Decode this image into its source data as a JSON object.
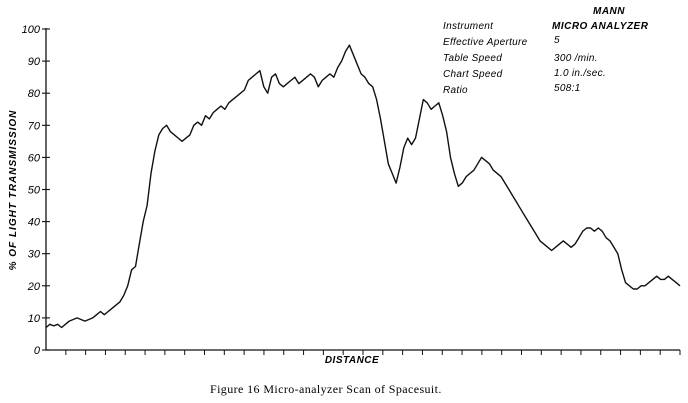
{
  "chart_data": {
    "type": "line",
    "ylabel": "% OF LIGHT TRANSMISSION",
    "xlabel": "DISTANCE",
    "ylim": [
      0,
      100
    ],
    "yticks": [
      "0",
      "10",
      "20",
      "30",
      "40",
      "50",
      "60",
      "70",
      "80",
      "90",
      "100"
    ],
    "grid": false,
    "series": [
      {
        "values": [
          7,
          8,
          7.5,
          8,
          7,
          8,
          9,
          9.5,
          10,
          9.5,
          9,
          9.5,
          10,
          11,
          12,
          11,
          12,
          13,
          14,
          15,
          17,
          20,
          25,
          26,
          33,
          40,
          45,
          55,
          62,
          67,
          69,
          70,
          68,
          67,
          66,
          65,
          66,
          67,
          70,
          71,
          70,
          73,
          72,
          74,
          75,
          76,
          75,
          77,
          78,
          79,
          80,
          81,
          84,
          85,
          86,
          87,
          82,
          80,
          85,
          86,
          83,
          82,
          83,
          84,
          85,
          83,
          84,
          85,
          86,
          85,
          82,
          84,
          85,
          86,
          85,
          88,
          90,
          93,
          95,
          92,
          89,
          86,
          85,
          83,
          82,
          78,
          72,
          65,
          58,
          55,
          52,
          57,
          63,
          66,
          64,
          66,
          72,
          78,
          77,
          75,
          76,
          77,
          73,
          68,
          60,
          55,
          51,
          52,
          54,
          55,
          56,
          58,
          60,
          59,
          58,
          56,
          55,
          54,
          52,
          50,
          48,
          46,
          44,
          42,
          40,
          38,
          36,
          34,
          33,
          32,
          31,
          32,
          33,
          34,
          33,
          32,
          33,
          35,
          37,
          38,
          38,
          37,
          38,
          37,
          35,
          34,
          32,
          30,
          25,
          21,
          20,
          19,
          19,
          20,
          20,
          21,
          22,
          23,
          22,
          22,
          23,
          22,
          21,
          20
        ]
      }
    ]
  },
  "info": {
    "heading": "MANN",
    "rows": [
      {
        "label": "Instrument",
        "value": "MICRO ANALYZER"
      },
      {
        "label": "Effective Aperture",
        "value": "5"
      },
      {
        "label": "Table Speed",
        "value": "300  /min."
      },
      {
        "label": "Chart Speed",
        "value": "1.0 in./sec."
      },
      {
        "label": "Ratio",
        "value": "508:1"
      }
    ]
  },
  "caption": "Figure 16  Micro-analyzer Scan of Spacesuit."
}
